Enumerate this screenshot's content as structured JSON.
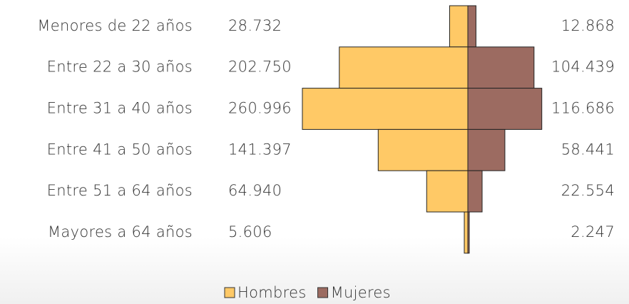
{
  "chart_data": {
    "type": "pyramid",
    "categories": [
      "Menores de 22 años",
      "Entre 22 a 30 años",
      "Entre 31 a 40 años",
      "Entre 41 a 50 años",
      "Entre 51 a 64 años",
      "Mayores a 64 años"
    ],
    "series": [
      {
        "name": "Hombres",
        "color": "#FFC966",
        "values": [
          28732,
          202750,
          260996,
          141397,
          64940,
          5606
        ],
        "value_labels": [
          "28.732",
          "202.750",
          "260.996",
          "141.397",
          "64.940",
          "5.606"
        ]
      },
      {
        "name": "Mujeres",
        "color": "#9C6B61",
        "values": [
          12868,
          104439,
          116686,
          58441,
          22554,
          2247
        ],
        "value_labels": [
          "12.868",
          "104.439",
          "116.686",
          "58.441",
          "22.554",
          "2.247"
        ]
      }
    ],
    "legend": "bottom"
  }
}
